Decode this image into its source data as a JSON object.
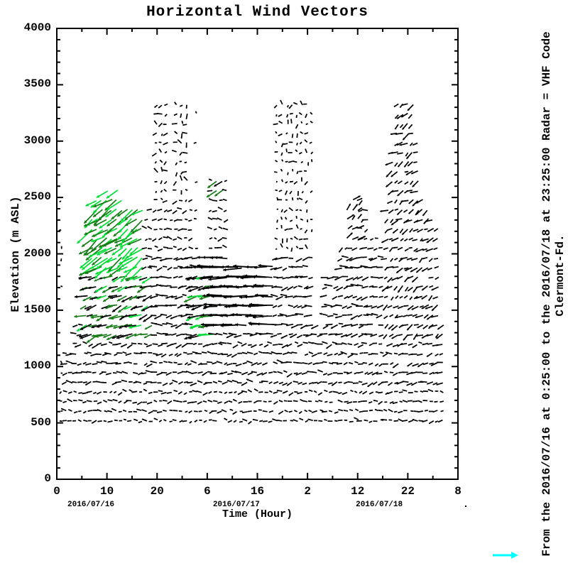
{
  "title": "Horizontal Wind Vectors",
  "axes": {
    "x": {
      "label": "Time (Hour)",
      "range_hours_since_start": [
        0,
        80
      ],
      "major_ticks": [
        {
          "hour": 0,
          "label": "0"
        },
        {
          "hour": 10,
          "label": "10"
        },
        {
          "hour": 20,
          "label": "20"
        },
        {
          "hour": 30,
          "label": "6"
        },
        {
          "hour": 40,
          "label": "16"
        },
        {
          "hour": 50,
          "label": "2"
        },
        {
          "hour": 60,
          "label": "12"
        },
        {
          "hour": 70,
          "label": "22"
        },
        {
          "hour": 80,
          "label": "8"
        }
      ],
      "minor_step_hours": 5,
      "date_labels": [
        {
          "text": "2016/07/16",
          "hour": 6.8
        },
        {
          "text": "2016/07/17",
          "hour": 35.8
        },
        {
          "text": "2016/07/18",
          "hour": 64.3
        }
      ]
    },
    "y": {
      "label": "Elevation (m ASL)",
      "range_m": [
        0,
        4000
      ],
      "major_ticks": [
        {
          "m": 0,
          "label": "0"
        },
        {
          "m": 500,
          "label": "500"
        },
        {
          "m": 1000,
          "label": "1000"
        },
        {
          "m": 1500,
          "label": "1500"
        },
        {
          "m": 2000,
          "label": "2000"
        },
        {
          "m": 2500,
          "label": "2500"
        },
        {
          "m": 3000,
          "label": "3000"
        },
        {
          "m": 3500,
          "label": "3500"
        },
        {
          "m": 4000,
          "label": "4000"
        }
      ],
      "minor_step_m": 100
    }
  },
  "annotations": {
    "right_line1": "From the 2016/07/16 at  0:25:00 to the 2016/07/18 at 23:25:00 Radar = VHF Code",
    "right_line2": "Clermont-Fd.",
    "reference_arrow_color": "#00ffff"
  },
  "chart_data": {
    "type": "scatter",
    "plot_style": "quiver-wind-vector-field",
    "title": "Horizontal Wind Vectors",
    "xlabel": "Time (Hour)",
    "ylabel": "Elevation (m ASL)",
    "xlim_hours": [
      0,
      80
    ],
    "ylim": [
      0,
      4000
    ],
    "xtick_labels": [
      "0",
      "10",
      "20",
      "6",
      "16",
      "2",
      "12",
      "22",
      "8"
    ],
    "date_span": [
      "2016/07/16",
      "2016/07/17",
      "2016/07/18"
    ],
    "instrument": "Radar = VHF Code",
    "station": "Clermont-Fd.",
    "grid": {
      "hour_step": 1,
      "first_hour": 1,
      "last_hour": 77,
      "elev_bottom_m": 520,
      "elev_step_m": 85
    },
    "vector_colors": {
      "k": "#000000",
      "b": "#00dd33",
      "d": "#167c16"
    },
    "columns_format": [
      "hour",
      "top_elevation_m",
      "sparse_flag"
    ],
    "columns": [
      [
        1,
        2600,
        1
      ],
      [
        2,
        1150
      ],
      [
        3,
        1150
      ],
      [
        4,
        1400
      ],
      [
        5,
        1450
      ],
      [
        6,
        1850
      ],
      [
        7,
        2350
      ],
      [
        8,
        2500
      ],
      [
        9,
        2550
      ],
      [
        10,
        2600
      ],
      [
        11,
        2550
      ],
      [
        12,
        2600
      ],
      [
        13,
        2500
      ],
      [
        14,
        2450
      ],
      [
        15,
        2400
      ],
      [
        16,
        2400
      ],
      [
        17,
        2400
      ],
      [
        18,
        2350
      ],
      [
        19,
        2400
      ],
      [
        20,
        3340
      ],
      [
        21,
        3340
      ],
      [
        22,
        3340
      ],
      [
        23,
        2450
      ],
      [
        24,
        3340
      ],
      [
        25,
        3340
      ],
      [
        26,
        3340
      ],
      [
        27,
        2500
      ],
      [
        28,
        3340,
        1
      ],
      [
        29,
        1900
      ],
      [
        30,
        1900
      ],
      [
        31,
        2650
      ],
      [
        32,
        2700
      ],
      [
        33,
        2700
      ],
      [
        34,
        2650
      ],
      [
        35,
        1950
      ],
      [
        36,
        1950
      ],
      [
        37,
        1900
      ],
      [
        38,
        1950
      ],
      [
        39,
        1900
      ],
      [
        40,
        1900
      ],
      [
        41,
        1850
      ],
      [
        42,
        1900
      ],
      [
        43,
        1900
      ],
      [
        44,
        3340
      ],
      [
        45,
        3340
      ],
      [
        46,
        3340
      ],
      [
        47,
        3340
      ],
      [
        48,
        3340
      ],
      [
        49,
        3340
      ],
      [
        50,
        3340
      ],
      [
        51,
        3340,
        1
      ],
      [
        52,
        1400
      ],
      [
        53,
        1350
      ],
      [
        54,
        1800
      ],
      [
        55,
        1850
      ],
      [
        56,
        1850
      ],
      [
        57,
        2100
      ],
      [
        58,
        2400
      ],
      [
        59,
        2500
      ],
      [
        60,
        2550
      ],
      [
        61,
        2500
      ],
      [
        62,
        2400
      ],
      [
        63,
        2150
      ],
      [
        64,
        2150
      ],
      [
        65,
        2100
      ],
      [
        66,
        2400
      ],
      [
        67,
        2950
      ],
      [
        68,
        3340
      ],
      [
        69,
        3340
      ],
      [
        70,
        3340
      ],
      [
        71,
        3340
      ],
      [
        72,
        3050
      ],
      [
        73,
        2550
      ],
      [
        74,
        2450
      ],
      [
        75,
        2350
      ],
      [
        76,
        2250
      ],
      [
        77,
        1450
      ]
    ],
    "flow_regions_format": {
      "h": "[hourMin,hourMax]",
      "e": "[elevMin,elevMax] m",
      "ang": "pointing direction deg CCW from east",
      "angJ": "jitter deg",
      "len": "[minPx,maxPx]",
      "col": "weighted color keys"
    },
    "flow_regions": [
      {
        "h": [
          0.5,
          1.7
        ],
        "e": [
          0,
          2650
        ],
        "ang": 180,
        "angJ": 90,
        "len": [
          2,
          4
        ],
        "col": [
          [
            "k",
            1
          ]
        ]
      },
      {
        "h": [
          5.8,
          17.6
        ],
        "e": [
          1870,
          2640
        ],
        "ang": 215,
        "angJ": 16,
        "len": [
          15,
          30
        ],
        "col": [
          [
            "b",
            0.62
          ],
          [
            "d",
            0.38
          ]
        ]
      },
      {
        "h": [
          5.8,
          19.6
        ],
        "e": [
          1280,
          1870
        ],
        "ang": 200,
        "angJ": 16,
        "len": [
          9,
          19
        ],
        "col": [
          [
            "d",
            0.45
          ],
          [
            "b",
            0.12
          ],
          [
            "k",
            0.43
          ]
        ]
      },
      {
        "h": [
          27.4,
          31.9
        ],
        "e": [
          1280,
          1800
        ],
        "ang": 193,
        "angJ": 12,
        "len": [
          10,
          22
        ],
        "col": [
          [
            "d",
            0.25
          ],
          [
            "b",
            0.15
          ],
          [
            "k",
            0.6
          ]
        ]
      },
      {
        "h": [
          31.8,
          33.5
        ],
        "e": [
          2540,
          2660
        ],
        "ang": 213,
        "angJ": 8,
        "len": [
          13,
          17
        ],
        "col": [
          [
            "d",
            0.55
          ],
          [
            "k",
            0.45
          ]
        ]
      },
      {
        "h": [
          28.5,
          43.5
        ],
        "e": [
          1300,
          2020
        ],
        "ang": 181,
        "angJ": 6,
        "len": [
          16,
          27
        ],
        "col": [
          [
            "k",
            1
          ]
        ]
      },
      {
        "h": [
          34.5,
          44
        ],
        "e": [
          2020,
          2760
        ],
        "ang": 180,
        "angJ": 85,
        "len": [
          2,
          5
        ],
        "col": [
          [
            "k",
            1
          ]
        ]
      },
      {
        "h": [
          56.3,
          60.6
        ],
        "e": [
          2130,
          2560
        ],
        "ang": 42,
        "angJ": 22,
        "len": [
          7,
          12
        ],
        "col": [
          [
            "k",
            1
          ]
        ]
      },
      {
        "h": [
          43.5,
          52.5
        ],
        "e": [
          2020,
          3380
        ],
        "ang": 180,
        "angJ": 90,
        "len": [
          3,
          7
        ],
        "col": [
          [
            "k",
            1
          ]
        ]
      },
      {
        "h": [
          19.5,
          28.5
        ],
        "e": [
          2440,
          3380
        ],
        "ang": 180,
        "angJ": 90,
        "len": [
          3,
          8
        ],
        "col": [
          [
            "k",
            1
          ]
        ]
      },
      {
        "h": [
          66,
          78
        ],
        "e": [
          1280,
          3380
        ],
        "ang": 212,
        "angJ": 26,
        "len": [
          5,
          12
        ],
        "col": [
          [
            "k",
            1
          ]
        ]
      },
      {
        "h": [
          54,
          78
        ],
        "e": [
          2020,
          3380
        ],
        "ang": 195,
        "angJ": 45,
        "len": [
          4,
          9
        ],
        "col": [
          [
            "k",
            1
          ]
        ]
      },
      {
        "h": [
          0,
          81
        ],
        "e": [
          1280,
          2020
        ],
        "ang": 188,
        "angJ": 24,
        "len": [
          6,
          12
        ],
        "col": [
          [
            "k",
            1
          ]
        ]
      },
      {
        "h": [
          0,
          81
        ],
        "e": [
          850,
          1280
        ],
        "ang": 186,
        "angJ": 30,
        "len": [
          5,
          10
        ],
        "col": [
          [
            "k",
            1
          ]
        ]
      },
      {
        "h": [
          0,
          81
        ],
        "e": [
          0,
          4000
        ],
        "ang": 183,
        "angJ": 34,
        "len": [
          4,
          8
        ],
        "col": [
          [
            "k",
            1
          ]
        ]
      }
    ],
    "legend": {
      "reference_arrow": {
        "color": "#00ffff",
        "direction": "east"
      }
    }
  }
}
